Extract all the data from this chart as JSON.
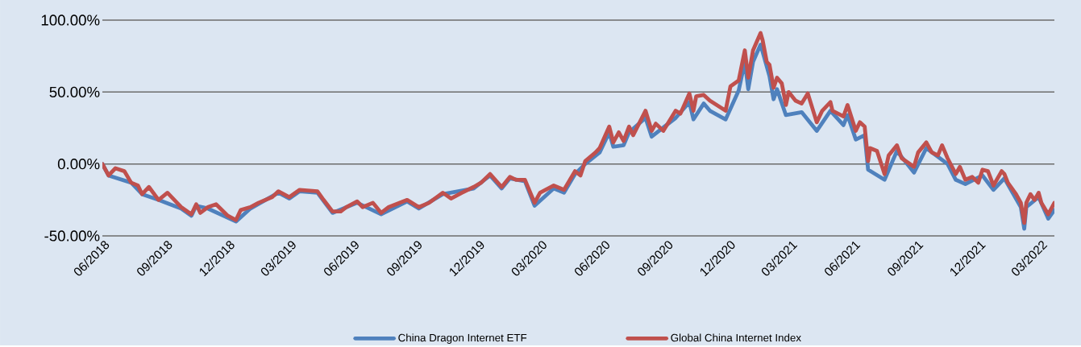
{
  "chart_data": {
    "type": "line",
    "xlim": [
      "2018-06-01",
      "2022-03-22"
    ],
    "xticks": [
      {
        "value": "2018-06",
        "label": "06/2018"
      },
      {
        "value": "2018-09",
        "label": "09/2018"
      },
      {
        "value": "2018-12",
        "label": "12/2018"
      },
      {
        "value": "2019-03",
        "label": "03/2019"
      },
      {
        "value": "2019-06",
        "label": "06/2019"
      },
      {
        "value": "2019-09",
        "label": "09/2019"
      },
      {
        "value": "2019-12",
        "label": "12/2019"
      },
      {
        "value": "2020-03",
        "label": "03/2020"
      },
      {
        "value": "2020-06",
        "label": "06/2020"
      },
      {
        "value": "2020-09",
        "label": "09/2020"
      },
      {
        "value": "2020-12",
        "label": "12/2020"
      },
      {
        "value": "2021-03",
        "label": "03/2021"
      },
      {
        "value": "2021-06",
        "label": "06/2021"
      },
      {
        "value": "2021-09",
        "label": "09/2021"
      },
      {
        "value": "2021-12",
        "label": "12/2021"
      },
      {
        "value": "2022-03",
        "label": "03/2022"
      }
    ],
    "ylim": [
      -50,
      100
    ],
    "yticks": [
      {
        "value": -50,
        "label": "-50.00%"
      },
      {
        "value": 0,
        "label": "0.00%"
      },
      {
        "value": 50,
        "label": "50.00%"
      },
      {
        "value": 100,
        "label": "100.00%"
      }
    ],
    "grid": "y",
    "legend": "bottom",
    "series": [
      {
        "name": "China Dragon Internet ETF",
        "color": "#4f81bd",
        "x": [
          "2018-06-01",
          "2018-06-10",
          "2018-07-13",
          "2018-07-29",
          "2018-08-22",
          "2018-09-24",
          "2018-10-09",
          "2018-10-16",
          "2018-11-02",
          "2018-12-13",
          "2019-01-03",
          "2019-02-13",
          "2019-03-01",
          "2019-03-16",
          "2019-04-11",
          "2019-05-03",
          "2019-06-08",
          "2019-07-13",
          "2019-08-20",
          "2019-09-06",
          "2019-10-11",
          "2019-11-25",
          "2019-12-19",
          "2020-01-05",
          "2020-01-17",
          "2020-02-08",
          "2020-02-22",
          "2020-03-21",
          "2020-04-05",
          "2020-04-21",
          "2020-05-06",
          "2020-05-27",
          "2020-06-10",
          "2020-06-16",
          "2020-07-01",
          "2020-07-09",
          "2020-08-02",
          "2020-08-11",
          "2020-09-15",
          "2020-10-05",
          "2020-10-11",
          "2020-10-26",
          "2020-11-04",
          "2020-11-27",
          "2020-12-16",
          "2020-12-25",
          "2020-12-30",
          "2021-01-06",
          "2021-01-17",
          "2021-01-30",
          "2021-02-05",
          "2021-02-10",
          "2021-02-23",
          "2021-03-18",
          "2021-04-09",
          "2021-04-29",
          "2021-05-18",
          "2021-05-24",
          "2021-06-05",
          "2021-06-18",
          "2021-06-23",
          "2021-07-17",
          "2021-08-04",
          "2021-08-29",
          "2021-09-16",
          "2021-10-17",
          "2021-10-29",
          "2021-11-12",
          "2021-12-07",
          "2021-12-23",
          "2022-01-08",
          "2022-02-01",
          "2022-02-06",
          "2022-02-09",
          "2022-02-27",
          "2022-03-13",
          "2022-03-22"
        ],
        "values": [
          0,
          -8,
          -13,
          -21,
          -25,
          -31,
          -36,
          -29,
          -31,
          -40,
          -31,
          -20,
          -24,
          -19,
          -20,
          -34,
          -27,
          -35,
          -26,
          -31,
          -21,
          -17,
          -8,
          -17,
          -10,
          -12,
          -29,
          -17,
          -20,
          -7,
          0,
          8,
          22,
          12,
          13,
          22,
          32,
          19,
          32,
          43,
          31,
          42,
          37,
          31,
          51,
          71,
          52,
          71,
          83,
          61,
          45,
          52,
          34,
          36,
          23,
          37,
          27,
          34,
          17,
          20,
          -4,
          -11,
          9,
          -6,
          11,
          0,
          -11,
          -14,
          -8,
          -18,
          -10,
          -30,
          -45,
          -30,
          -23,
          -38,
          -32
        ]
      },
      {
        "name": "Global China Internet Index",
        "color": "#c0504d",
        "x": [
          "2018-06-01",
          "2018-06-10",
          "2018-06-20",
          "2018-07-03",
          "2018-07-13",
          "2018-07-23",
          "2018-07-29",
          "2018-08-08",
          "2018-08-22",
          "2018-09-04",
          "2018-09-18",
          "2018-09-24",
          "2018-10-09",
          "2018-10-16",
          "2018-10-22",
          "2018-11-02",
          "2018-11-14",
          "2018-12-01",
          "2018-12-13",
          "2018-12-20",
          "2019-01-03",
          "2019-01-15",
          "2019-02-04",
          "2019-02-13",
          "2019-03-01",
          "2019-03-16",
          "2019-04-11",
          "2019-04-20",
          "2019-05-03",
          "2019-05-15",
          "2019-05-23",
          "2019-06-08",
          "2019-06-16",
          "2019-07-01",
          "2019-07-13",
          "2019-07-24",
          "2019-08-20",
          "2019-09-06",
          "2019-09-21",
          "2019-10-11",
          "2019-10-23",
          "2019-11-08",
          "2019-11-25",
          "2019-12-06",
          "2019-12-19",
          "2020-01-05",
          "2020-01-17",
          "2020-01-26",
          "2020-02-08",
          "2020-02-22",
          "2020-03-01",
          "2020-03-21",
          "2020-04-05",
          "2020-04-21",
          "2020-04-29",
          "2020-05-06",
          "2020-05-21",
          "2020-05-27",
          "2020-06-10",
          "2020-06-16",
          "2020-06-24",
          "2020-07-01",
          "2020-07-09",
          "2020-07-15",
          "2020-08-02",
          "2020-08-11",
          "2020-08-17",
          "2020-08-28",
          "2020-09-15",
          "2020-09-22",
          "2020-10-05",
          "2020-10-11",
          "2020-10-15",
          "2020-10-26",
          "2020-11-04",
          "2020-11-27",
          "2020-12-04",
          "2020-12-16",
          "2020-12-25",
          "2020-12-30",
          "2021-01-06",
          "2021-01-17",
          "2021-01-20",
          "2021-01-26",
          "2021-01-30",
          "2021-02-05",
          "2021-02-10",
          "2021-02-17",
          "2021-02-23",
          "2021-02-27",
          "2021-03-09",
          "2021-03-18",
          "2021-03-27",
          "2021-04-09",
          "2021-04-17",
          "2021-04-29",
          "2021-05-02",
          "2021-05-18",
          "2021-05-24",
          "2021-06-05",
          "2021-06-11",
          "2021-06-18",
          "2021-06-23",
          "2021-06-26",
          "2021-07-06",
          "2021-07-17",
          "2021-07-23",
          "2021-08-04",
          "2021-08-11",
          "2021-08-29",
          "2021-09-04",
          "2021-09-16",
          "2021-09-24",
          "2021-10-03",
          "2021-10-09",
          "2021-10-17",
          "2021-10-29",
          "2021-11-04",
          "2021-11-12",
          "2021-11-22",
          "2021-12-01",
          "2021-12-07",
          "2021-12-15",
          "2021-12-23",
          "2022-01-04",
          "2022-01-08",
          "2022-01-13",
          "2022-01-25",
          "2022-02-01",
          "2022-02-06",
          "2022-02-09",
          "2022-02-15",
          "2022-02-21",
          "2022-02-27",
          "2022-03-03",
          "2022-03-13",
          "2022-03-22"
        ],
        "values": [
          0,
          -8,
          -3,
          -5,
          -13,
          -15,
          -21,
          -16,
          -25,
          -20,
          -27,
          -30,
          -35,
          -28,
          -34,
          -30,
          -28,
          -36,
          -39,
          -32,
          -30,
          -27,
          -23,
          -19,
          -23,
          -18,
          -19,
          -25,
          -33,
          -33,
          -30,
          -26,
          -30,
          -27,
          -34,
          -30,
          -25,
          -30,
          -27,
          -20,
          -24,
          -20,
          -16,
          -13,
          -7,
          -16,
          -9,
          -11,
          -11,
          -27,
          -20,
          -15,
          -18,
          -5,
          -8,
          2,
          8,
          11,
          26,
          15,
          22,
          16,
          26,
          20,
          37,
          23,
          28,
          23,
          37,
          35,
          49,
          37,
          47,
          48,
          44,
          37,
          54,
          58,
          79,
          60,
          79,
          91,
          86,
          71,
          69,
          53,
          60,
          56,
          41,
          50,
          44,
          42,
          49,
          29,
          37,
          43,
          37,
          33,
          41,
          23,
          29,
          26,
          2,
          11,
          9,
          -7,
          6,
          13,
          4,
          -2,
          8,
          15,
          8,
          6,
          13,
          4,
          -7,
          -2,
          -11,
          -9,
          -13,
          -4,
          -5,
          -15,
          -5,
          -7,
          -13,
          -21,
          -27,
          -41,
          -27,
          -21,
          -25,
          -20,
          -27,
          -35,
          -27
        ]
      }
    ]
  }
}
